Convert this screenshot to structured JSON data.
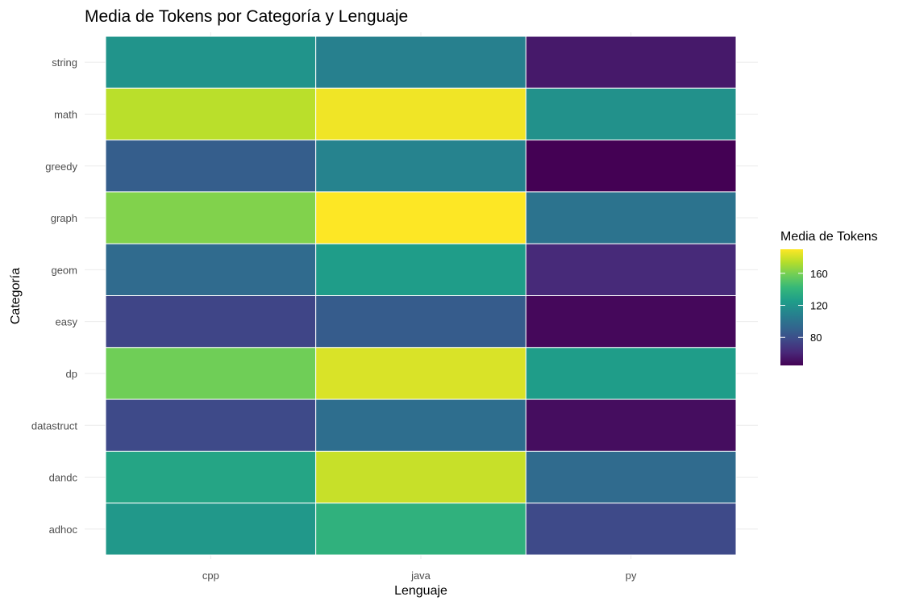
{
  "chart_data": {
    "type": "heatmap",
    "title": "Media de Tokens por Categoría y Lenguaje",
    "xlabel": "Lenguaje",
    "ylabel": "Categoría",
    "x_categories": [
      "cpp",
      "java",
      "py"
    ],
    "y_categories": [
      "adhoc",
      "dandc",
      "datastruct",
      "dp",
      "easy",
      "geom",
      "graph",
      "greedy",
      "math",
      "string"
    ],
    "values": {
      "string": [
        120,
        108,
        55
      ],
      "math": [
        175,
        187,
        118
      ],
      "greedy": [
        88,
        110,
        45
      ],
      "graph": [
        162,
        190,
        100
      ],
      "geom": [
        95,
        125,
        62
      ],
      "easy": [
        75,
        87,
        48
      ],
      "dp": [
        158,
        182,
        125
      ],
      "datastruct": [
        77,
        97,
        50
      ],
      "dandc": [
        130,
        178,
        95
      ],
      "adhoc": [
        122,
        138,
        77
      ]
    },
    "legend": {
      "title": "Media de Tokens",
      "ticks": [
        80,
        120,
        160
      ],
      "min": 45,
      "max": 190,
      "position": "right"
    },
    "colormap": [
      "#440154",
      "#482878",
      "#3e4a89",
      "#31688e",
      "#26828e",
      "#1f9e89",
      "#35b779",
      "#6ece58",
      "#b5de2b",
      "#fde725"
    ]
  }
}
